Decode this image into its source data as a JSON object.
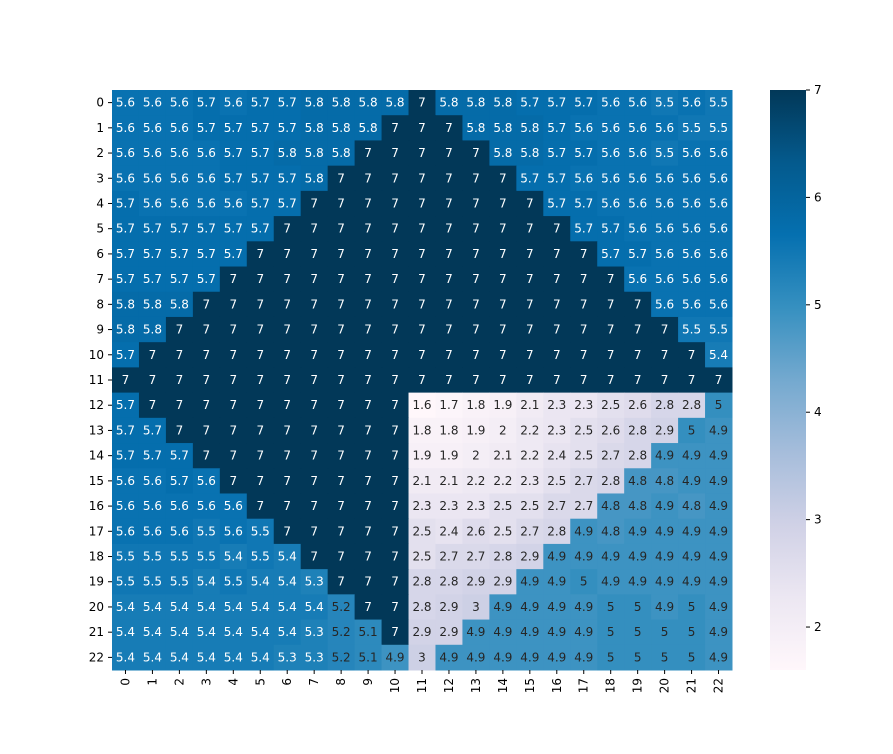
{
  "chart_data": {
    "type": "heatmap",
    "title": "",
    "xlabel": "",
    "ylabel": "",
    "x_ticks": [
      "0",
      "1",
      "2",
      "3",
      "4",
      "5",
      "6",
      "7",
      "8",
      "9",
      "10",
      "11",
      "12",
      "13",
      "14",
      "15",
      "16",
      "17",
      "18",
      "19",
      "20",
      "21",
      "22"
    ],
    "y_ticks": [
      "0",
      "1",
      "2",
      "3",
      "4",
      "5",
      "6",
      "7",
      "8",
      "9",
      "10",
      "11",
      "12",
      "13",
      "14",
      "15",
      "16",
      "17",
      "18",
      "19",
      "20",
      "21",
      "22"
    ],
    "colorbar": {
      "min": 1.6,
      "max": 7,
      "ticks": [
        "2",
        "3",
        "4",
        "5",
        "6",
        "7"
      ],
      "colormap": "PuBu"
    },
    "values": [
      [
        5.6,
        5.6,
        5.6,
        5.7,
        5.6,
        5.7,
        5.7,
        5.8,
        5.8,
        5.8,
        5.8,
        7,
        5.8,
        5.8,
        5.8,
        5.7,
        5.7,
        5.7,
        5.6,
        5.6,
        5.5,
        5.6,
        5.5
      ],
      [
        5.6,
        5.6,
        5.6,
        5.7,
        5.7,
        5.7,
        5.7,
        5.8,
        5.8,
        5.8,
        7,
        7,
        7,
        5.8,
        5.8,
        5.8,
        5.7,
        5.6,
        5.6,
        5.6,
        5.6,
        5.5,
        5.5
      ],
      [
        5.6,
        5.6,
        5.6,
        5.6,
        5.7,
        5.7,
        5.8,
        5.8,
        5.8,
        7,
        7,
        7,
        7,
        7,
        5.8,
        5.8,
        5.7,
        5.7,
        5.6,
        5.6,
        5.5,
        5.6,
        5.6
      ],
      [
        5.6,
        5.6,
        5.6,
        5.6,
        5.7,
        5.7,
        5.7,
        5.8,
        7,
        7,
        7,
        7,
        7,
        7,
        7,
        5.7,
        5.7,
        5.6,
        5.6,
        5.6,
        5.6,
        5.6,
        5.6
      ],
      [
        5.7,
        5.6,
        5.6,
        5.6,
        5.6,
        5.7,
        5.7,
        7,
        7,
        7,
        7,
        7,
        7,
        7,
        7,
        7,
        5.7,
        5.7,
        5.6,
        5.6,
        5.6,
        5.6,
        5.6
      ],
      [
        5.7,
        5.7,
        5.7,
        5.7,
        5.7,
        5.7,
        7,
        7,
        7,
        7,
        7,
        7,
        7,
        7,
        7,
        7,
        7,
        5.7,
        5.7,
        5.6,
        5.6,
        5.6,
        5.6
      ],
      [
        5.7,
        5.7,
        5.7,
        5.7,
        5.7,
        7,
        7,
        7,
        7,
        7,
        7,
        7,
        7,
        7,
        7,
        7,
        7,
        7,
        5.7,
        5.7,
        5.6,
        5.6,
        5.6
      ],
      [
        5.7,
        5.7,
        5.7,
        5.7,
        7,
        7,
        7,
        7,
        7,
        7,
        7,
        7,
        7,
        7,
        7,
        7,
        7,
        7,
        7,
        5.6,
        5.6,
        5.6,
        5.6
      ],
      [
        5.8,
        5.8,
        5.8,
        7,
        7,
        7,
        7,
        7,
        7,
        7,
        7,
        7,
        7,
        7,
        7,
        7,
        7,
        7,
        7,
        7,
        5.6,
        5.6,
        5.6
      ],
      [
        5.8,
        5.8,
        7,
        7,
        7,
        7,
        7,
        7,
        7,
        7,
        7,
        7,
        7,
        7,
        7,
        7,
        7,
        7,
        7,
        7,
        7,
        5.5,
        5.5
      ],
      [
        5.7,
        7,
        7,
        7,
        7,
        7,
        7,
        7,
        7,
        7,
        7,
        7,
        7,
        7,
        7,
        7,
        7,
        7,
        7,
        7,
        7,
        7,
        5.4
      ],
      [
        7,
        7,
        7,
        7,
        7,
        7,
        7,
        7,
        7,
        7,
        7,
        7,
        7,
        7,
        7,
        7,
        7,
        7,
        7,
        7,
        7,
        7,
        7
      ],
      [
        5.7,
        7,
        7,
        7,
        7,
        7,
        7,
        7,
        7,
        7,
        7,
        1.6,
        1.7,
        1.8,
        1.9,
        2.1,
        2.3,
        2.3,
        2.5,
        2.6,
        2.8,
        2.8,
        5
      ],
      [
        5.7,
        5.7,
        7,
        7,
        7,
        7,
        7,
        7,
        7,
        7,
        7,
        1.8,
        1.8,
        1.9,
        2,
        2.2,
        2.3,
        2.5,
        2.6,
        2.8,
        2.9,
        5,
        4.9
      ],
      [
        5.7,
        5.7,
        5.7,
        7,
        7,
        7,
        7,
        7,
        7,
        7,
        7,
        1.9,
        1.9,
        2,
        2.1,
        2.2,
        2.4,
        2.5,
        2.7,
        2.8,
        4.9,
        4.9,
        4.9
      ],
      [
        5.6,
        5.6,
        5.7,
        5.6,
        7,
        7,
        7,
        7,
        7,
        7,
        7,
        2.1,
        2.1,
        2.2,
        2.2,
        2.3,
        2.5,
        2.7,
        2.8,
        4.8,
        4.8,
        4.9,
        4.9
      ],
      [
        5.6,
        5.6,
        5.6,
        5.6,
        5.6,
        7,
        7,
        7,
        7,
        7,
        7,
        2.3,
        2.3,
        2.3,
        2.5,
        2.5,
        2.7,
        2.7,
        4.8,
        4.8,
        4.9,
        4.8,
        4.9
      ],
      [
        5.6,
        5.6,
        5.6,
        5.5,
        5.6,
        5.5,
        7,
        7,
        7,
        7,
        7,
        2.5,
        2.4,
        2.6,
        2.5,
        2.7,
        2.8,
        4.9,
        4.8,
        4.9,
        4.9,
        4.9,
        4.9
      ],
      [
        5.5,
        5.5,
        5.5,
        5.5,
        5.4,
        5.5,
        5.4,
        7,
        7,
        7,
        7,
        2.5,
        2.7,
        2.7,
        2.8,
        2.9,
        4.9,
        4.9,
        4.9,
        4.9,
        4.9,
        4.9,
        4.9
      ],
      [
        5.5,
        5.5,
        5.5,
        5.4,
        5.5,
        5.4,
        5.4,
        5.3,
        7,
        7,
        7,
        2.8,
        2.8,
        2.9,
        2.9,
        4.9,
        4.9,
        5,
        4.9,
        4.9,
        4.9,
        4.9,
        4.9
      ],
      [
        5.4,
        5.4,
        5.4,
        5.4,
        5.4,
        5.4,
        5.4,
        5.4,
        5.2,
        7,
        7,
        2.8,
        2.9,
        3,
        4.9,
        4.9,
        4.9,
        4.9,
        5,
        5,
        4.9,
        5,
        4.9
      ],
      [
        5.4,
        5.4,
        5.4,
        5.4,
        5.4,
        5.4,
        5.4,
        5.3,
        5.2,
        5.1,
        7,
        2.9,
        2.9,
        4.9,
        4.9,
        4.9,
        4.9,
        4.9,
        5,
        5,
        5,
        5,
        4.9
      ],
      [
        5.4,
        5.4,
        5.4,
        5.4,
        5.4,
        5.4,
        5.3,
        5.3,
        5.2,
        5.1,
        4.9,
        3,
        4.9,
        4.9,
        4.9,
        4.9,
        4.9,
        4.9,
        5,
        5,
        5,
        5,
        4.9
      ]
    ]
  }
}
